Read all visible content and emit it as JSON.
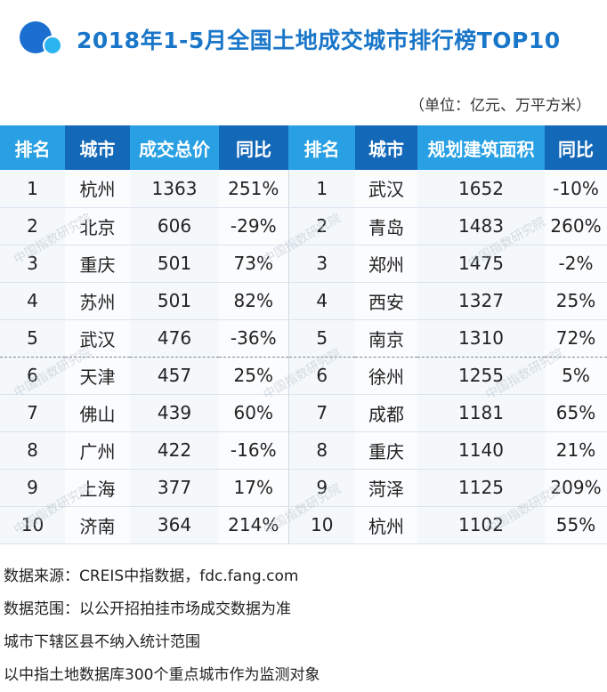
{
  "header": {
    "title": "2018年1-5月全国土地成交城市排行榜TOP10",
    "unit": "（单位：亿元、万平方米）"
  },
  "brand": {
    "primary_color": "#1976c8",
    "accent_color": "#28a0e3",
    "navy_color": "#1468b8"
  },
  "table": {
    "columns": [
      "排名",
      "城市",
      "成交总价",
      "同比",
      "排名",
      "城市",
      "规划建筑面积",
      "同比"
    ],
    "rows": [
      [
        "1",
        "杭州",
        "1363",
        "251%",
        "1",
        "武汉",
        "1652",
        "-10%"
      ],
      [
        "2",
        "北京",
        "606",
        "-29%",
        "2",
        "青岛",
        "1483",
        "260%"
      ],
      [
        "3",
        "重庆",
        "501",
        "73%",
        "3",
        "郑州",
        "1475",
        "-2%"
      ],
      [
        "4",
        "苏州",
        "501",
        "82%",
        "4",
        "西安",
        "1327",
        "25%"
      ],
      [
        "5",
        "武汉",
        "476",
        "-36%",
        "5",
        "南京",
        "1310",
        "72%"
      ],
      [
        "6",
        "天津",
        "457",
        "25%",
        "6",
        "徐州",
        "1255",
        "5%"
      ],
      [
        "7",
        "佛山",
        "439",
        "60%",
        "7",
        "成都",
        "1181",
        "65%"
      ],
      [
        "8",
        "广州",
        "422",
        "-16%",
        "8",
        "重庆",
        "1140",
        "21%"
      ],
      [
        "9",
        "上海",
        "377",
        "17%",
        "9",
        "菏泽",
        "1125",
        "209%"
      ],
      [
        "10",
        "济南",
        "364",
        "214%",
        "10",
        "杭州",
        "1102",
        "55%"
      ]
    ]
  },
  "notes": [
    "数据来源：CREIS中指数据，fdc.fang.com",
    "数据范围：以公开招拍挂市场成交数据为准",
    "城市下辖区县不纳入统计范围",
    "以中指土地数据库300个重点城市作为监测对象"
  ],
  "watermark": "中国指数研究院"
}
